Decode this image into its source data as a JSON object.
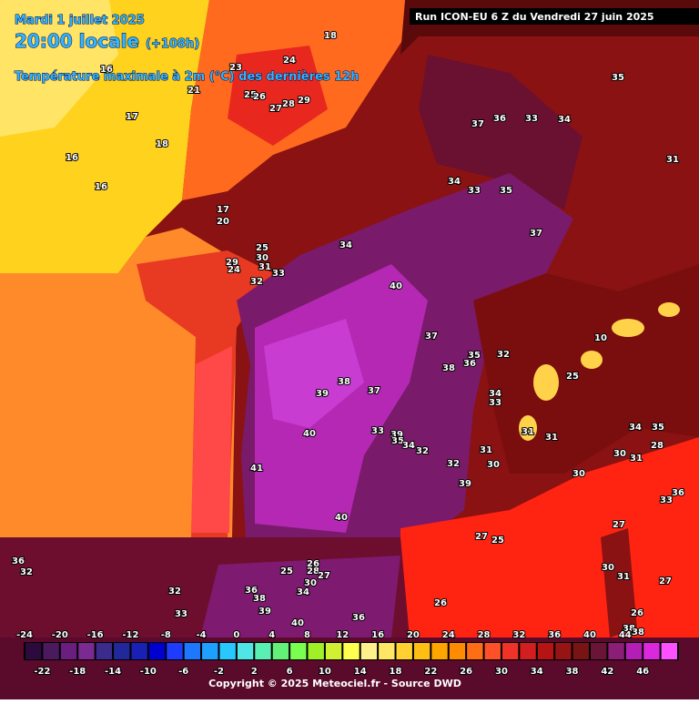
{
  "header": {
    "date": "Mardi 1 juillet 2025",
    "time": "20:00 locale",
    "lead": "(+108h)",
    "title": "Température maximale à 2m (°C) des dernières 12h",
    "run": "Run ICON-EU 6 Z du Vendredi 27 juin 2025"
  },
  "map_labels": [
    "18",
    "24",
    "23",
    "21",
    "16",
    "17",
    "18",
    "16",
    "16",
    "25",
    "26",
    "27",
    "28",
    "29",
    "35",
    "37",
    "36",
    "33",
    "34",
    "31",
    "34",
    "33",
    "35",
    "37",
    "34",
    "17",
    "20",
    "25",
    "30",
    "31",
    "29",
    "24",
    "33",
    "32",
    "40",
    "37",
    "38",
    "35",
    "36",
    "32",
    "38",
    "39",
    "37",
    "34",
    "33",
    "40",
    "33",
    "39",
    "35",
    "34",
    "32",
    "31",
    "32",
    "30",
    "41",
    "39",
    "40",
    "31",
    "31",
    "34",
    "35",
    "30",
    "31",
    "28",
    "30",
    "27",
    "27",
    "25",
    "36",
    "33",
    "30",
    "31",
    "27",
    "26",
    "26",
    "28",
    "25",
    "27",
    "30",
    "34",
    "36",
    "32",
    "32",
    "33",
    "36",
    "38",
    "39",
    "40",
    "36",
    "26",
    "38",
    "38",
    "25",
    "10"
  ],
  "scale": {
    "top_labels": [
      -24,
      -20,
      -16,
      -12,
      -8,
      -4,
      0,
      4,
      8,
      12,
      16,
      20,
      24,
      28,
      32,
      36,
      40,
      44
    ],
    "bottom_labels": [
      -22,
      -18,
      -14,
      -10,
      -6,
      -2,
      2,
      6,
      10,
      14,
      18,
      22,
      26,
      30,
      34,
      38,
      42,
      46
    ],
    "colors": [
      "#2d0a3d",
      "#4b1a5e",
      "#6a1e7e",
      "#7a2a90",
      "#3c2a8c",
      "#20289a",
      "#1a20b4",
      "#0000d0",
      "#1e3cff",
      "#1e78ff",
      "#1ea0ff",
      "#28c8ff",
      "#50e6e6",
      "#5af0b4",
      "#64f078",
      "#78ff50",
      "#a0f028",
      "#d2f032",
      "#ffff50",
      "#fff08c",
      "#ffe664",
      "#ffd232",
      "#ffbe14",
      "#ffa500",
      "#ff8c00",
      "#ff6e14",
      "#ff5028",
      "#f03228",
      "#d21e1e",
      "#b41414",
      "#961414",
      "#7a1414",
      "#6a1438",
      "#8c1e78",
      "#b41eb4",
      "#dc28dc",
      "#ff50ff"
    ]
  },
  "footer": {
    "copyright": "Copyright © 2025 Meteociel.fr - Source DWD"
  }
}
